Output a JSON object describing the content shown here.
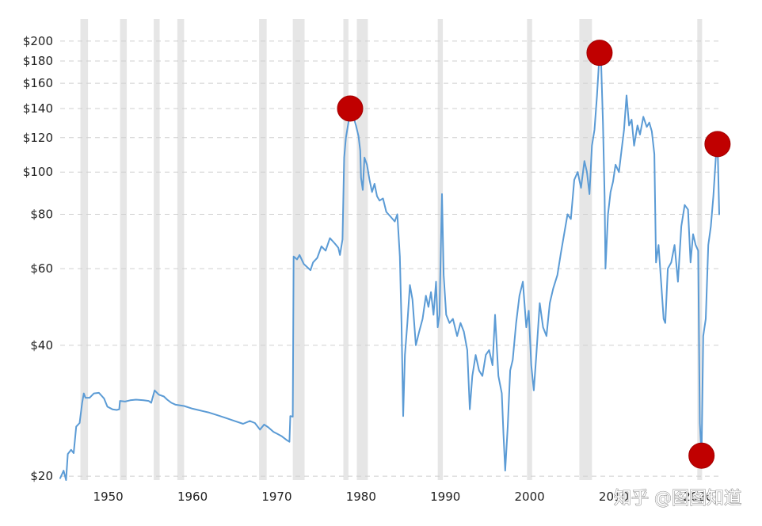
{
  "chart_data": {
    "type": "line",
    "title": "",
    "xlabel": "",
    "ylabel": "",
    "y_scale": "log",
    "xlim": [
      1944.3,
      2022.5
    ],
    "ylim": [
      19.6,
      212
    ],
    "grid": {
      "horizontal": true,
      "style": "dashed"
    },
    "line_color": "#5b9bd5",
    "marker_color": "#c00000",
    "recession_color": "#e6e6e6",
    "x_ticks": [
      {
        "value": 1950,
        "label": "1950"
      },
      {
        "value": 1960,
        "label": "1960"
      },
      {
        "value": 1970,
        "label": "1970"
      },
      {
        "value": 1980,
        "label": "1980"
      },
      {
        "value": 1990,
        "label": "1990"
      },
      {
        "value": 2000,
        "label": "2000"
      },
      {
        "value": 2010,
        "label": "2010"
      },
      {
        "value": 2020,
        "label": "2020"
      }
    ],
    "y_ticks": [
      {
        "value": 20,
        "label": "$20"
      },
      {
        "value": 40,
        "label": "$40"
      },
      {
        "value": 60,
        "label": "$60"
      },
      {
        "value": 80,
        "label": "$80"
      },
      {
        "value": 100,
        "label": "$100"
      },
      {
        "value": 120,
        "label": "$120"
      },
      {
        "value": 140,
        "label": "$140"
      },
      {
        "value": 160,
        "label": "$160"
      },
      {
        "value": 180,
        "label": "$180"
      },
      {
        "value": 200,
        "label": "$200"
      }
    ],
    "recessions": [
      [
        1946.7,
        1947.6
      ],
      [
        1951.4,
        1952.2
      ],
      [
        1955.4,
        1956.1
      ],
      [
        1958.2,
        1959.0
      ],
      [
        1967.9,
        1968.8
      ],
      [
        1971.9,
        1973.3
      ],
      [
        1977.9,
        1978.5
      ],
      [
        1979.5,
        1980.8
      ],
      [
        1989.1,
        1989.7
      ],
      [
        1999.7,
        2000.3
      ],
      [
        2005.9,
        2007.4
      ],
      [
        2019.9,
        2020.3
      ]
    ],
    "series": [
      {
        "values": [
          [
            1944.3,
            19.8
          ],
          [
            1944.7,
            20.6
          ],
          [
            1945.0,
            19.6
          ],
          [
            1945.2,
            22.5
          ],
          [
            1945.6,
            23.0
          ],
          [
            1945.9,
            22.6
          ],
          [
            1946.2,
            26.0
          ],
          [
            1946.6,
            26.5
          ],
          [
            1946.9,
            29.5
          ],
          [
            1947.1,
            31.0
          ],
          [
            1947.3,
            30.3
          ],
          [
            1947.8,
            30.3
          ],
          [
            1948.3,
            31.0
          ],
          [
            1948.9,
            31.1
          ],
          [
            1949.5,
            30.2
          ],
          [
            1949.9,
            28.9
          ],
          [
            1950.5,
            28.5
          ],
          [
            1951.0,
            28.4
          ],
          [
            1951.3,
            28.5
          ],
          [
            1951.4,
            29.8
          ],
          [
            1952.0,
            29.7
          ],
          [
            1952.6,
            29.9
          ],
          [
            1953.3,
            30.0
          ],
          [
            1954.2,
            29.9
          ],
          [
            1954.8,
            29.8
          ],
          [
            1955.1,
            29.5
          ],
          [
            1955.5,
            31.5
          ],
          [
            1956.0,
            30.8
          ],
          [
            1956.6,
            30.5
          ],
          [
            1957.0,
            30.0
          ],
          [
            1957.5,
            29.5
          ],
          [
            1958.0,
            29.2
          ],
          [
            1959.0,
            29.0
          ],
          [
            1960.0,
            28.6
          ],
          [
            1961.0,
            28.3
          ],
          [
            1962.0,
            28.0
          ],
          [
            1963.0,
            27.6
          ],
          [
            1964.0,
            27.2
          ],
          [
            1965.0,
            26.8
          ],
          [
            1966.0,
            26.4
          ],
          [
            1966.8,
            26.8
          ],
          [
            1967.4,
            26.5
          ],
          [
            1968.0,
            25.6
          ],
          [
            1968.5,
            26.3
          ],
          [
            1969.0,
            25.9
          ],
          [
            1969.6,
            25.3
          ],
          [
            1970.1,
            25.0
          ],
          [
            1970.6,
            24.7
          ],
          [
            1971.2,
            24.2
          ],
          [
            1971.5,
            24.0
          ],
          [
            1971.6,
            27.5
          ],
          [
            1971.9,
            27.4
          ],
          [
            1972.0,
            64.0
          ],
          [
            1972.4,
            63.0
          ],
          [
            1972.7,
            64.5
          ],
          [
            1973.2,
            61.5
          ],
          [
            1973.6,
            60.5
          ],
          [
            1974.0,
            59.5
          ],
          [
            1974.3,
            62.0
          ],
          [
            1974.8,
            63.5
          ],
          [
            1975.3,
            67.5
          ],
          [
            1975.8,
            66.0
          ],
          [
            1976.3,
            70.5
          ],
          [
            1976.9,
            68.5
          ],
          [
            1977.3,
            67.0
          ],
          [
            1977.5,
            64.5
          ],
          [
            1977.8,
            70.0
          ],
          [
            1978.0,
            108.0
          ],
          [
            1978.2,
            120.0
          ],
          [
            1978.5,
            130.0
          ],
          [
            1978.7,
            140.0
          ],
          [
            1979.0,
            136.0
          ],
          [
            1979.4,
            128.0
          ],
          [
            1979.7,
            121.0
          ],
          [
            1979.9,
            112.0
          ],
          [
            1980.0,
            97.0
          ],
          [
            1980.2,
            91.0
          ],
          [
            1980.4,
            108.0
          ],
          [
            1980.7,
            104.0
          ],
          [
            1981.0,
            96.0
          ],
          [
            1981.3,
            90.0
          ],
          [
            1981.6,
            94.0
          ],
          [
            1981.9,
            88.0
          ],
          [
            1982.2,
            86.0
          ],
          [
            1982.6,
            87.0
          ],
          [
            1983.0,
            81.0
          ],
          [
            1983.5,
            79.0
          ],
          [
            1984.0,
            77.0
          ],
          [
            1984.3,
            80.0
          ],
          [
            1984.6,
            64.0
          ],
          [
            1984.8,
            45.0
          ],
          [
            1985.0,
            27.5
          ],
          [
            1985.2,
            38.0
          ],
          [
            1985.5,
            45.0
          ],
          [
            1985.8,
            55.0
          ],
          [
            1986.1,
            51.0
          ],
          [
            1986.5,
            40.0
          ],
          [
            1986.9,
            43.0
          ],
          [
            1987.3,
            46.0
          ],
          [
            1987.7,
            52.0
          ],
          [
            1988.0,
            49.0
          ],
          [
            1988.3,
            53.0
          ],
          [
            1988.6,
            47.0
          ],
          [
            1988.9,
            56.0
          ],
          [
            1989.1,
            44.0
          ],
          [
            1989.3,
            47.0
          ],
          [
            1989.6,
            89.0
          ],
          [
            1989.8,
            58.0
          ],
          [
            1990.1,
            47.0
          ],
          [
            1990.5,
            45.0
          ],
          [
            1990.9,
            46.0
          ],
          [
            1991.4,
            42.0
          ],
          [
            1991.8,
            45.0
          ],
          [
            1992.2,
            43.0
          ],
          [
            1992.6,
            39.0
          ],
          [
            1992.9,
            28.5
          ],
          [
            1993.2,
            34.0
          ],
          [
            1993.6,
            38.0
          ],
          [
            1994.0,
            35.0
          ],
          [
            1994.4,
            34.0
          ],
          [
            1994.8,
            38.0
          ],
          [
            1995.2,
            39.0
          ],
          [
            1995.6,
            36.0
          ],
          [
            1995.9,
            47.0
          ],
          [
            1996.3,
            34.0
          ],
          [
            1996.7,
            31.0
          ],
          [
            1996.9,
            25.0
          ],
          [
            1997.1,
            20.6
          ],
          [
            1997.4,
            26.0
          ],
          [
            1997.7,
            35.0
          ],
          [
            1998.0,
            37.0
          ],
          [
            1998.4,
            45.0
          ],
          [
            1998.8,
            52.0
          ],
          [
            1999.2,
            56.0
          ],
          [
            1999.6,
            44.0
          ],
          [
            1999.9,
            48.0
          ],
          [
            2000.2,
            36.0
          ],
          [
            2000.5,
            31.5
          ],
          [
            2000.8,
            38.0
          ],
          [
            2001.2,
            50.0
          ],
          [
            2001.6,
            44.0
          ],
          [
            2002.0,
            42.0
          ],
          [
            2002.4,
            50.0
          ],
          [
            2002.8,
            54.0
          ],
          [
            2003.3,
            58.0
          ],
          [
            2003.7,
            65.0
          ],
          [
            2004.1,
            72.0
          ],
          [
            2004.5,
            80.0
          ],
          [
            2004.9,
            78.0
          ],
          [
            2005.3,
            96.0
          ],
          [
            2005.7,
            100.0
          ],
          [
            2006.1,
            92.0
          ],
          [
            2006.5,
            106.0
          ],
          [
            2006.8,
            100.0
          ],
          [
            2007.1,
            89.0
          ],
          [
            2007.4,
            115.0
          ],
          [
            2007.7,
            125.0
          ],
          [
            2008.0,
            150.0
          ],
          [
            2008.3,
            188.0
          ],
          [
            2008.5,
            176.0
          ],
          [
            2008.7,
            130.0
          ],
          [
            2008.9,
            88.0
          ],
          [
            2009.0,
            60.0
          ],
          [
            2009.3,
            80.0
          ],
          [
            2009.6,
            90.0
          ],
          [
            2009.9,
            95.0
          ],
          [
            2010.2,
            104.0
          ],
          [
            2010.6,
            100.0
          ],
          [
            2010.9,
            112.0
          ],
          [
            2011.2,
            125.0
          ],
          [
            2011.5,
            150.0
          ],
          [
            2011.8,
            128.0
          ],
          [
            2012.1,
            132.0
          ],
          [
            2012.4,
            115.0
          ],
          [
            2012.8,
            128.0
          ],
          [
            2013.1,
            122.0
          ],
          [
            2013.5,
            134.0
          ],
          [
            2013.9,
            127.0
          ],
          [
            2014.2,
            130.0
          ],
          [
            2014.5,
            124.0
          ],
          [
            2014.8,
            110.0
          ],
          [
            2015.0,
            62.0
          ],
          [
            2015.3,
            68.0
          ],
          [
            2015.6,
            56.0
          ],
          [
            2015.9,
            46.0
          ],
          [
            2016.1,
            45.0
          ],
          [
            2016.4,
            60.0
          ],
          [
            2016.8,
            62.0
          ],
          [
            2017.2,
            68.0
          ],
          [
            2017.6,
            56.0
          ],
          [
            2018.0,
            75.0
          ],
          [
            2018.4,
            84.0
          ],
          [
            2018.8,
            82.0
          ],
          [
            2019.1,
            62.0
          ],
          [
            2019.4,
            72.0
          ],
          [
            2019.7,
            68.0
          ],
          [
            2020.0,
            66.0
          ],
          [
            2020.2,
            26.5
          ],
          [
            2020.4,
            22.3
          ],
          [
            2020.6,
            42.0
          ],
          [
            2020.9,
            46.0
          ],
          [
            2021.2,
            68.0
          ],
          [
            2021.5,
            75.0
          ],
          [
            2021.8,
            88.0
          ],
          [
            2022.1,
            108.0
          ],
          [
            2022.3,
            116.0
          ],
          [
            2022.5,
            80.0
          ]
        ]
      }
    ],
    "highlights": [
      {
        "x": 1978.7,
        "y": 140.0
      },
      {
        "x": 2008.3,
        "y": 188.0
      },
      {
        "x": 2020.4,
        "y": 22.3
      },
      {
        "x": 2022.3,
        "y": 116.0
      }
    ]
  },
  "watermark": {
    "text": "知乎 @图图知道"
  }
}
